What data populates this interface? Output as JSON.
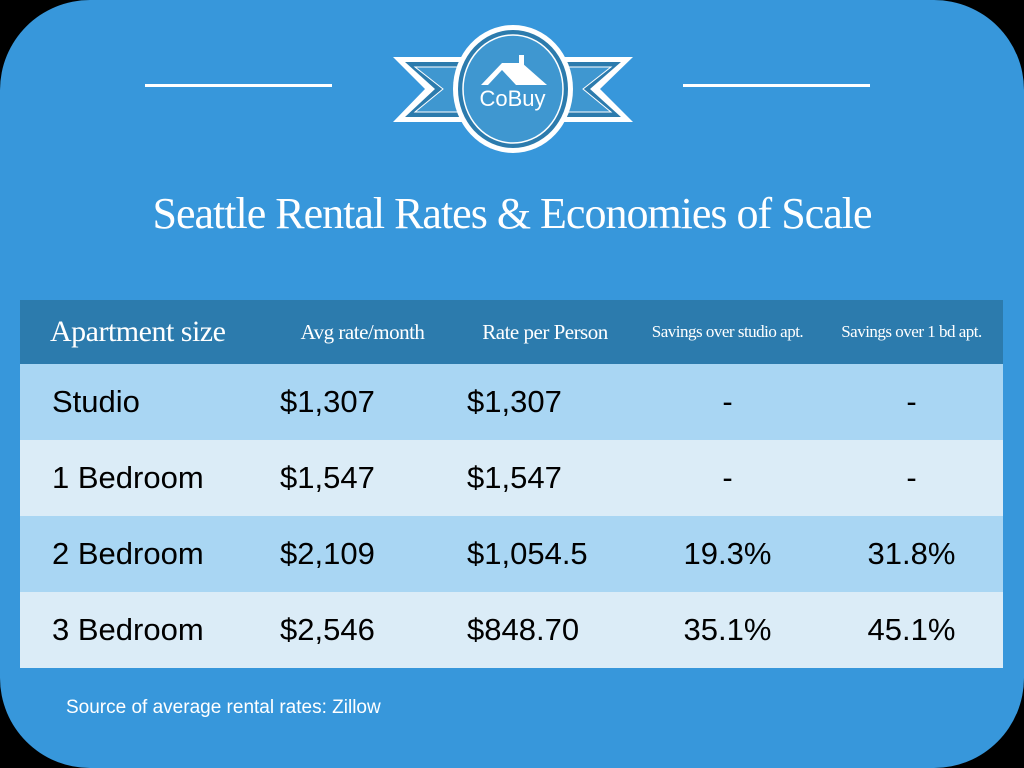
{
  "logo": {
    "text": "CoBuy"
  },
  "title": "Seattle Rental Rates & Economies of Scale",
  "table": {
    "headers": [
      "Apartment size",
      "Avg rate/month",
      "Rate per Person",
      "Savings over studio apt.",
      "Savings over 1 bd apt."
    ],
    "rows": [
      [
        "Studio",
        "$1,307",
        "$1,307",
        "-",
        "-"
      ],
      [
        "1 Bedroom",
        "$1,547",
        "$1,547",
        "-",
        "-"
      ],
      [
        "2 Bedroom",
        "$2,109",
        "$1,054.5",
        "19.3%",
        "31.8%"
      ],
      [
        "3 Bedroom",
        "$2,546",
        "$848.70",
        "35.1%",
        "45.1%"
      ]
    ]
  },
  "source": "Source of average rental rates: Zillow"
}
